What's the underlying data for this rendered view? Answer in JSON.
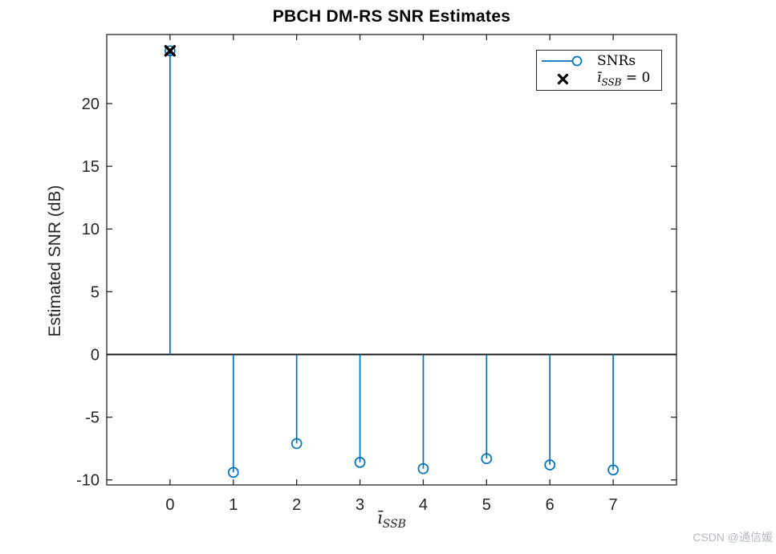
{
  "watermark": "CSDN @通信媛",
  "chart_data": {
    "type": "stem",
    "title": "PBCH DM-RS SNR Estimates",
    "xlabel": {
      "base": "ī",
      "sub": "SSB"
    },
    "ylabel": "Estimated SNR (dB)",
    "x": [
      0,
      1,
      2,
      3,
      4,
      5,
      6,
      7
    ],
    "values": [
      24.2,
      -9.4,
      -7.1,
      -8.6,
      -9.1,
      -8.3,
      -8.8,
      -9.2
    ],
    "highlight": {
      "index": 0,
      "marker": "x",
      "color": "#000000"
    },
    "xlim": [
      -1,
      8
    ],
    "ylim": [
      -10.4,
      25.5
    ],
    "xticks": [
      "0",
      "1",
      "2",
      "3",
      "4",
      "5",
      "6",
      "7"
    ],
    "xtick_values": [
      0,
      1,
      2,
      3,
      4,
      5,
      6,
      7
    ],
    "yticks": [
      "-10",
      "-5",
      "0",
      "5",
      "10",
      "15",
      "20"
    ],
    "ytick_values": [
      -10,
      -5,
      0,
      5,
      10,
      15,
      20
    ],
    "baseline_value": 0,
    "grid": false,
    "legend_position": "top-right",
    "colors": {
      "stem": "#0072BD",
      "axis": "#262626",
      "baseline": "#1a1a1a",
      "highlight": "#000000"
    },
    "legend": [
      {
        "marker": "line-circle",
        "label": "SNRs"
      },
      {
        "marker": "x",
        "label_base": "ī",
        "label_sub": "SSB",
        "label_rest": " = 0"
      }
    ]
  }
}
